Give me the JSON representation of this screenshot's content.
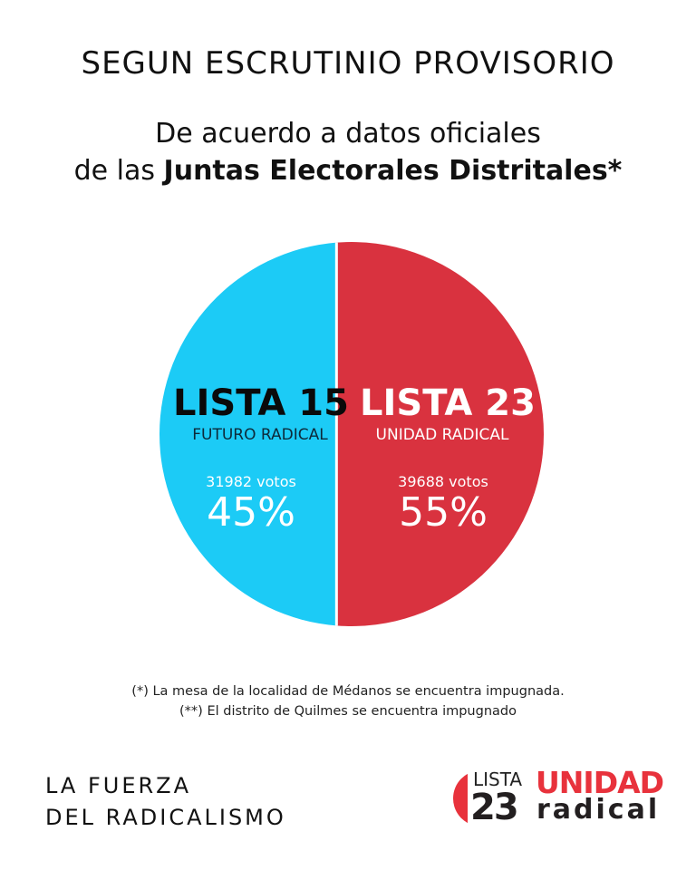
{
  "header": {
    "title": "SEGUN ESCRUTINIO PROVISORIO",
    "subtitle_line1": "De acuerdo a datos oficiales",
    "subtitle_line2_prefix": "de las ",
    "subtitle_line2_bold": "Juntas Electorales Distritales*"
  },
  "chart_data": {
    "type": "pie",
    "categories": [
      "LISTA 15",
      "LISTA 23"
    ],
    "values": [
      45,
      55
    ],
    "votes": [
      31982,
      39688
    ],
    "series": [
      {
        "name": "LISTA 15",
        "subtitle": "FUTURO RADICAL",
        "votes_label": "31982 votos",
        "percent_label": "45%",
        "value": 45,
        "color": "#1ccbf6"
      },
      {
        "name": "LISTA 23",
        "subtitle": "UNIDAD RADICAL",
        "votes_label": "39688 votos",
        "percent_label": "55%",
        "value": 55,
        "color": "#d9323f"
      }
    ]
  },
  "footnotes": [
    "(*) La mesa de la localidad de Médanos se encuentra impugnada.",
    "(**) El distrito de Quilmes se encuentra impugnado"
  ],
  "footer": {
    "slogan_line1": "LA FUERZA",
    "slogan_line2": "DEL RADICALISMO",
    "logo": {
      "lista": "LISTA",
      "number": "23",
      "unidad": "UNIDAD",
      "radical": "radical"
    }
  }
}
